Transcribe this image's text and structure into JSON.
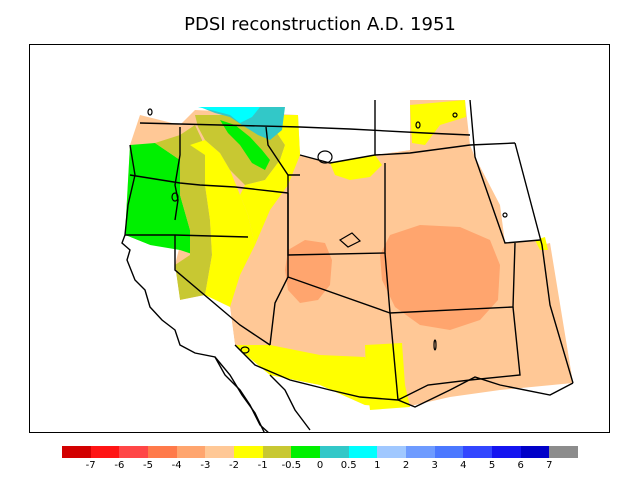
{
  "title": "PDSI reconstruction A.D. 1951",
  "legend": {
    "colors": [
      "#d20000",
      "#ff1414",
      "#ff4646",
      "#ff7a4a",
      "#ffa56e",
      "#ffc896",
      "#ffff00",
      "#c8c832",
      "#00f000",
      "#32c8c8",
      "#00ffff",
      "#a0c8ff",
      "#6e9bff",
      "#4b78ff",
      "#3246ff",
      "#1414f0",
      "#0000c8",
      "#8c8c8c"
    ],
    "labels": [
      "-7",
      "-6",
      "-5",
      "-4",
      "-3",
      "-2",
      "-1",
      "-0.5",
      "0",
      "0.5",
      "1",
      "2",
      "3",
      "4",
      "5",
      "6",
      "7"
    ]
  },
  "map": {
    "region": "Western United States",
    "fill_colors": {
      "wet_strong": "#00ffff",
      "wet_mild": "#32c8c8",
      "near_normal_wet": "#00f000",
      "near_normal_dry": "#c8c832",
      "mild_dry": "#ffff00",
      "moderate_dry": "#ffc896",
      "severe_dry": "#ffa56e"
    }
  }
}
